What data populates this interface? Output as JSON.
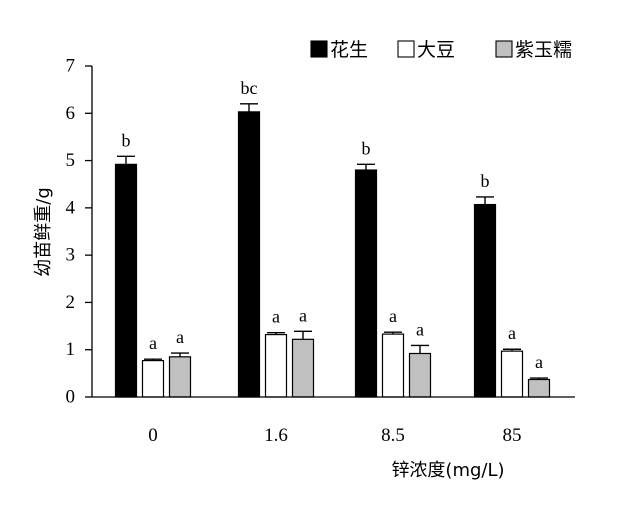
{
  "chart_data": {
    "type": "bar",
    "title": "",
    "xlabel": "锌浓度(mg/L)",
    "ylabel": "幼苗鲜重/g",
    "ylim": [
      0,
      7
    ],
    "yticks": [
      0,
      1,
      2,
      3,
      4,
      5,
      6,
      7
    ],
    "categories": [
      "0",
      "1.6",
      "8.5",
      "85"
    ],
    "legend_position": "top-right",
    "grid": false,
    "series": [
      {
        "name": "花生",
        "color": "#000000",
        "values": [
          4.92,
          6.03,
          4.8,
          4.07
        ],
        "errors": [
          0.17,
          0.17,
          0.12,
          0.16
        ],
        "labels": [
          "b",
          "bc",
          "b",
          "b"
        ]
      },
      {
        "name": "大豆",
        "color": "#ffffff",
        "values": [
          0.77,
          1.32,
          1.33,
          0.97
        ],
        "errors": [
          0.03,
          0.04,
          0.04,
          0.04
        ],
        "labels": [
          "a",
          "a",
          "a",
          "a"
        ]
      },
      {
        "name": "紫玉糯",
        "color": "#c0c0c0",
        "values": [
          0.85,
          1.22,
          0.92,
          0.37
        ],
        "errors": [
          0.08,
          0.17,
          0.17,
          0.03
        ],
        "labels": [
          "a",
          "a",
          "a",
          "a"
        ]
      }
    ]
  }
}
